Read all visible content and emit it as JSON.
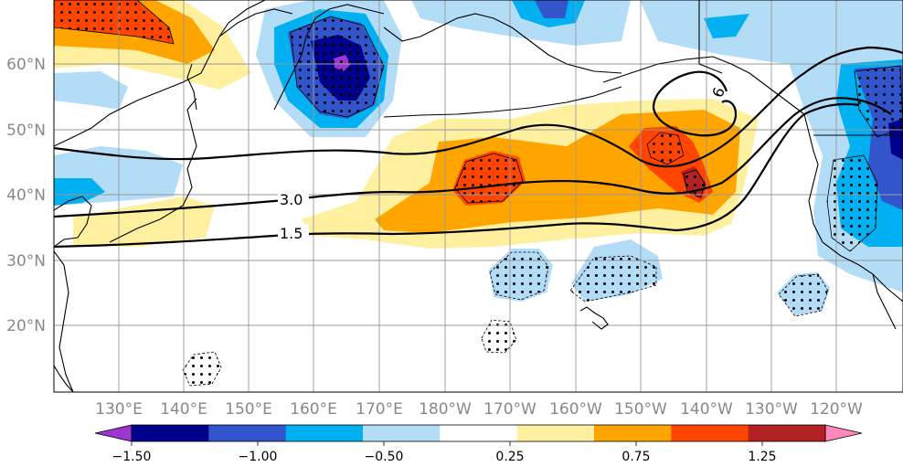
{
  "map": {
    "region": "North Pacific",
    "lat_ticks": [
      "60°N",
      "50°N",
      "40°N",
      "30°N",
      "20°N"
    ],
    "lon_ticks": [
      "130°E",
      "140°E",
      "150°E",
      "160°E",
      "170°E",
      "180°W",
      "170°W",
      "160°W",
      "150°W",
      "140°W",
      "130°W",
      "120°W"
    ],
    "contour_labels": [
      "3.0",
      "1.5",
      "6."
    ]
  },
  "colorbar": {
    "tick_labels": [
      "−1.50",
      "−1.00",
      "−0.50",
      "0.25",
      "0.75",
      "1.25"
    ],
    "colors": [
      "#9d35d0",
      "#00008b",
      "#3355cc",
      "#00b0f0",
      "#b3dcf7",
      "#ffffff",
      "#fff0a0",
      "#ffa500",
      "#ff4500",
      "#b22222",
      "#ff88bb"
    ],
    "under_color": "#9d35d0",
    "over_color": "#ff88bb"
  },
  "colors": {
    "land_line": "#000000",
    "grid": "#999999",
    "contour": "#000000"
  }
}
